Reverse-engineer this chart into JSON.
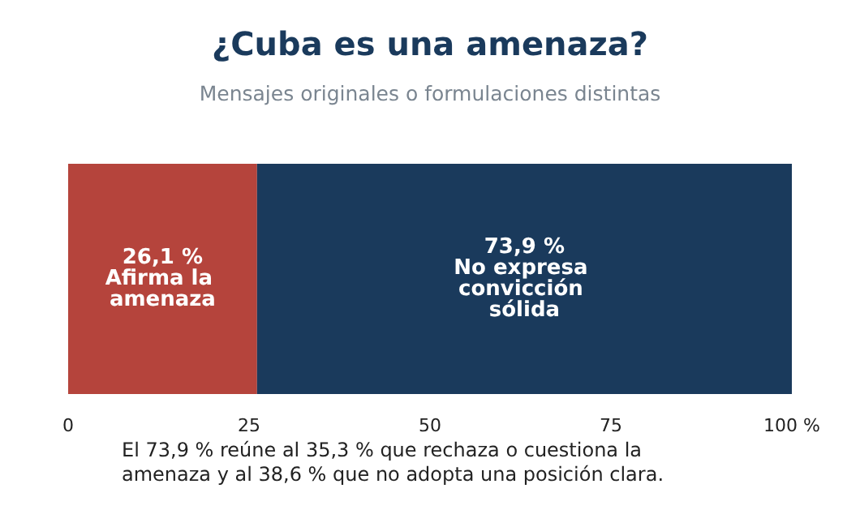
{
  "chart_data": {
    "type": "bar",
    "orientation": "horizontal",
    "stacked": true,
    "title": "¿Cuba es una amenaza?",
    "subtitle": "Mensajes originales o formulaciones distintas",
    "categories": [
      null
    ],
    "series": [
      {
        "name": "Afirma la amenaza",
        "color": "#b5443c",
        "values": [
          26.1
        ],
        "value_labels": [
          "26,1 %"
        ]
      },
      {
        "name": "No expresa convicción sólida",
        "color": "#1a3a5c",
        "values": [
          73.9
        ],
        "value_labels": [
          "73,9 %"
        ]
      }
    ],
    "xlim": [
      0,
      100
    ],
    "xticks": [
      0,
      25,
      50,
      75,
      {
        "value": 100,
        "label": "100 %"
      }
    ],
    "grid": false,
    "legend": false,
    "annotations": [
      "El 73,9 % reúne al 35,3 % que rechaza o cuestiona la amenaza y al 38,6 % que no adopta una posición clara."
    ]
  }
}
